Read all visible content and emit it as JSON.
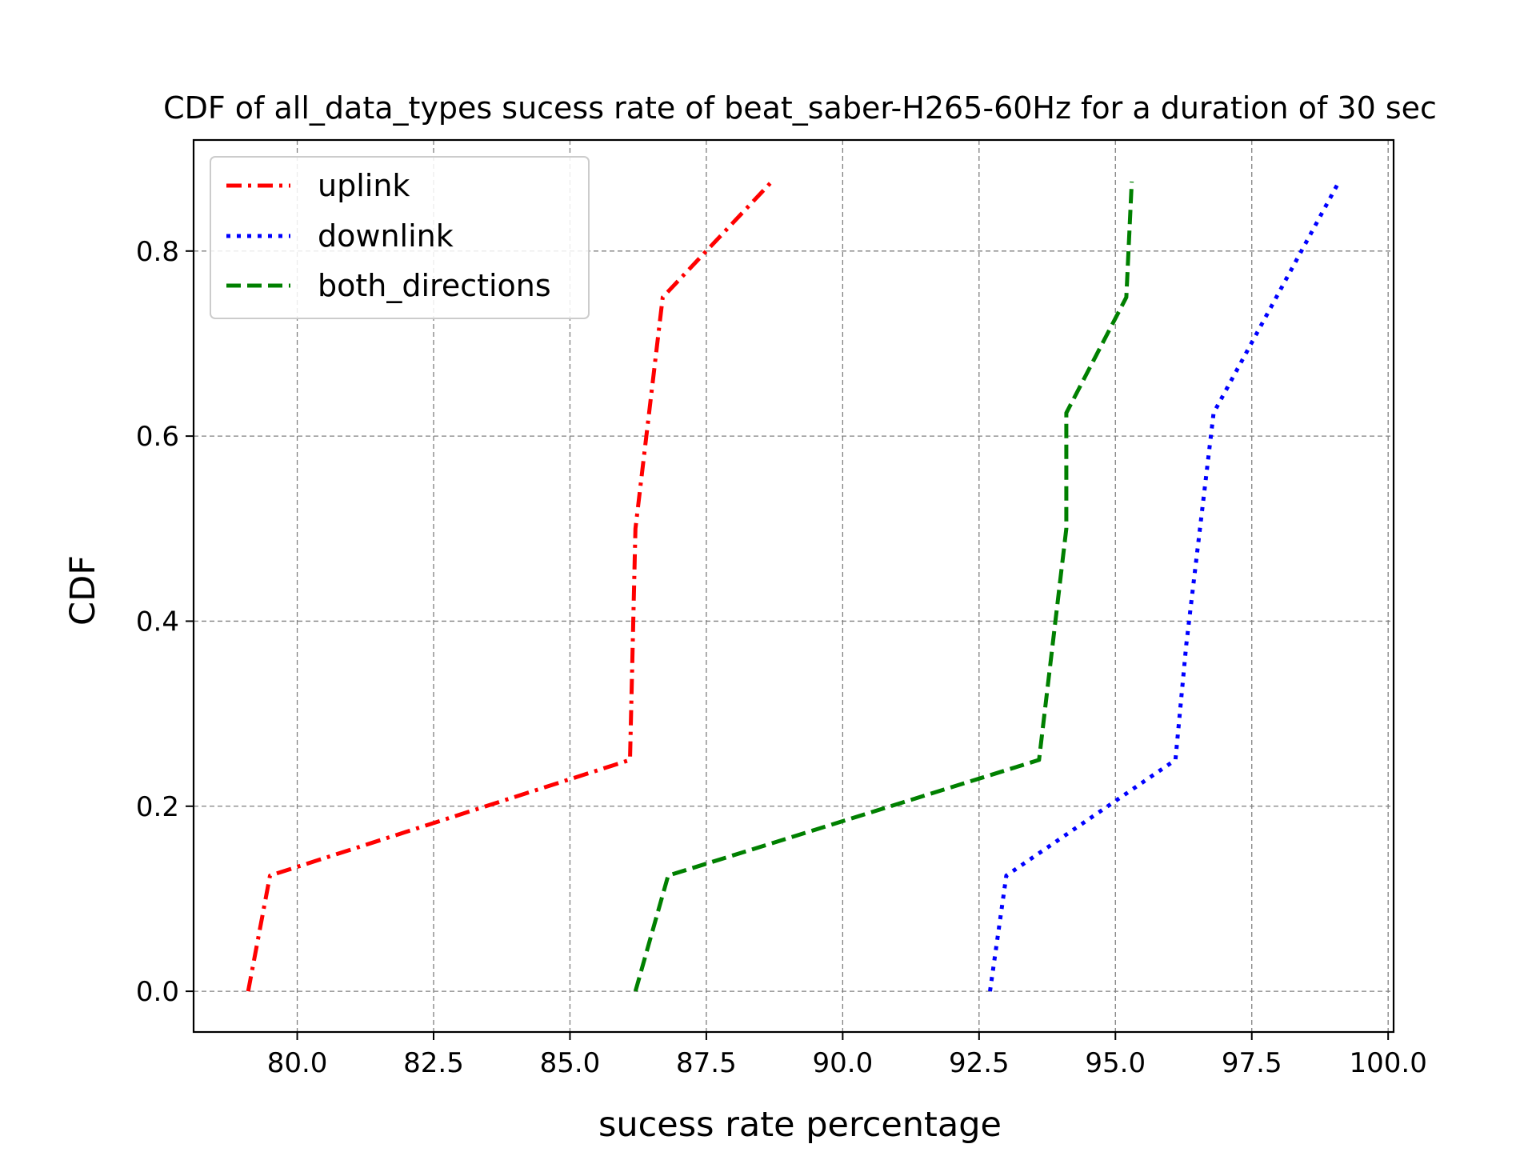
{
  "chart_data": {
    "type": "line",
    "title": "CDF of all_data_types sucess rate of beat_saber-H265-60Hz for a duration of 30 sec",
    "xlabel": "sucess rate percentage",
    "ylabel": "CDF",
    "xlim": [
      78.1,
      100.1
    ],
    "ylim": [
      -0.044,
      0.92
    ],
    "x_ticks": [
      80.0,
      82.5,
      85.0,
      87.5,
      90.0,
      92.5,
      95.0,
      97.5,
      100.0
    ],
    "x_tick_labels": [
      "80.0",
      "82.5",
      "85.0",
      "87.5",
      "90.0",
      "92.5",
      "95.0",
      "97.5",
      "100.0"
    ],
    "y_ticks": [
      0.0,
      0.2,
      0.4,
      0.6,
      0.8
    ],
    "y_tick_labels": [
      "0.0",
      "0.2",
      "0.4",
      "0.6",
      "0.8"
    ],
    "grid": true,
    "legend_position": "top-left",
    "series": [
      {
        "name": "uplink",
        "color": "#ff0000",
        "style": "dashdot",
        "x": [
          79.1,
          79.5,
          86.1,
          86.2,
          86.7,
          88.7
        ],
        "y": [
          0.0,
          0.125,
          0.25,
          0.5,
          0.75,
          0.875
        ]
      },
      {
        "name": "downlink",
        "color": "#0000ff",
        "style": "dotted",
        "x": [
          92.7,
          93.0,
          96.1,
          96.3,
          96.8,
          99.1
        ],
        "y": [
          0.0,
          0.125,
          0.25,
          0.375,
          0.625,
          0.875
        ]
      },
      {
        "name": "both_directions",
        "color": "#008000",
        "style": "dashed",
        "x": [
          86.2,
          86.8,
          93.6,
          94.1,
          94.1,
          95.2,
          95.3
        ],
        "y": [
          0.0,
          0.125,
          0.25,
          0.5,
          0.625,
          0.75,
          0.875
        ]
      }
    ]
  }
}
